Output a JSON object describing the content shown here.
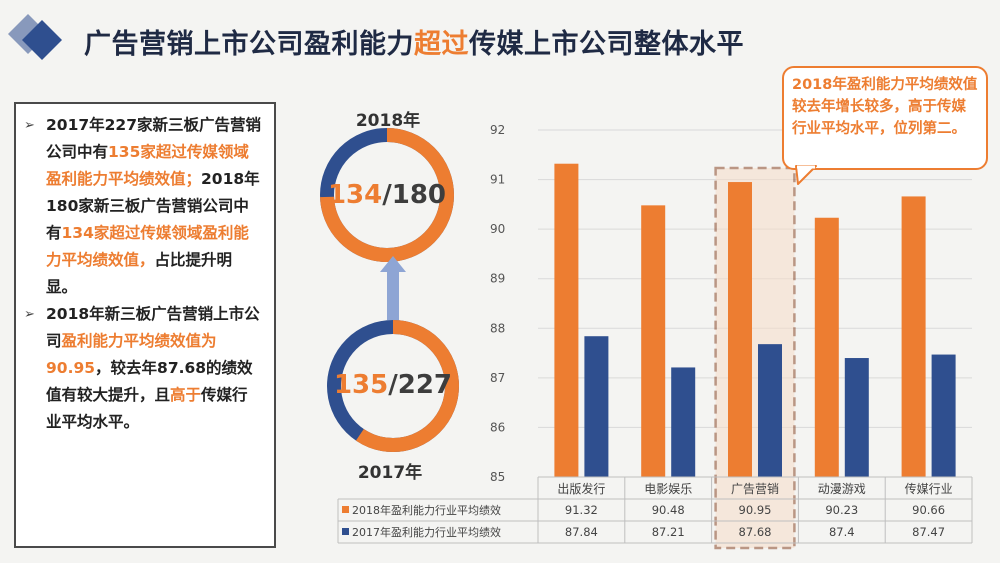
{
  "title": {
    "part1": "广告营销上市公司盈利能力",
    "highlight": "超过",
    "part2": "传媒上市公司整体水平"
  },
  "textbox": {
    "bullet1": {
      "t1": "2017年227家新三板广告营销公司中有",
      "h1": "135家超过传媒领域盈利能力平均绩效值；",
      "t2": "2018年180家新三板广告营销公司中有",
      "h2": "134家超过传媒领域盈利能力平均绩效值，",
      "t3": "占比提升明显。"
    },
    "bullet2": {
      "t1": "2018年新三板广告营销上市公司",
      "h1": "盈利能力平均绩效值为90.95",
      "t2": "，较去年87.68的绩效值有较大提升，且",
      "h2": "高于",
      "t3": "传媒行业平均水平。"
    }
  },
  "donuts": {
    "d2018": {
      "label": "2018年",
      "num": "134",
      "den": "180",
      "value": 134,
      "total": 180
    },
    "d2017": {
      "label": "2017年",
      "num": "135",
      "den": "227",
      "value": 135,
      "total": 227
    },
    "sep": "/"
  },
  "callout": {
    "text": "2018年盈利能力平均绩效值较去年增长较多，高于传媒行业平均水平，位列第二。"
  },
  "colors": {
    "orange": "#ed7d31",
    "blue": "#2f4f8f",
    "title": "#1f2a44"
  },
  "chart_data": {
    "type": "bar",
    "categories": [
      "出版发行",
      "电影娱乐",
      "广告营销",
      "动漫游戏",
      "传媒行业"
    ],
    "series": [
      {
        "name": "2018年盈利能力行业平均绩效",
        "values": [
          91.32,
          90.48,
          90.95,
          90.23,
          90.66
        ],
        "labels": [
          "91.32",
          "90.48",
          "90.95",
          "90.23",
          "90.66"
        ]
      },
      {
        "name": "2017年盈利能力行业平均绩效",
        "values": [
          87.84,
          87.21,
          87.68,
          87.4,
          87.47
        ],
        "labels": [
          "87.84",
          "87.21",
          "87.68",
          "87.4",
          "87.47"
        ]
      }
    ],
    "yticks": [
      "92",
      "91",
      "90",
      "89",
      "88",
      "87",
      "86",
      "85"
    ],
    "ylim": [
      85,
      92
    ],
    "highlight_category": "广告营销",
    "grid": true,
    "legend": "data-table"
  }
}
